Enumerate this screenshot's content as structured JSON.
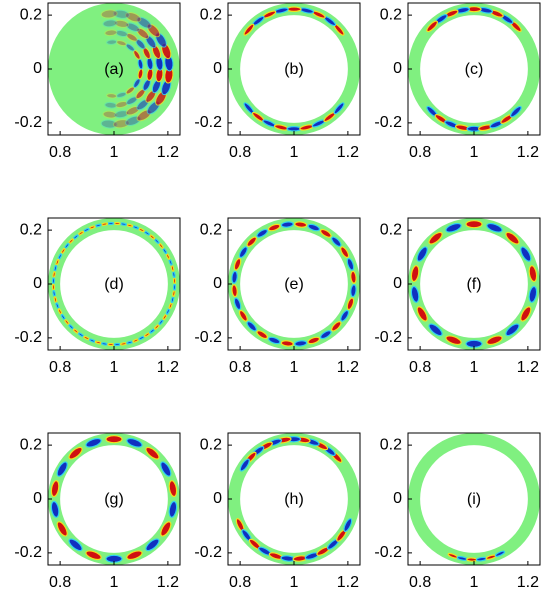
{
  "chart_data": [
    {
      "type": "heatmap",
      "annotation": "(a)",
      "xlim": [
        0.755,
        1.245
      ],
      "ylim": [
        -0.245,
        0.245
      ],
      "xticks": [
        0.8,
        1,
        1.2
      ],
      "yticks": [
        0.2,
        0,
        -0.2
      ]
    },
    {
      "type": "heatmap",
      "annotation": "(b)",
      "xlim": [
        0.755,
        1.245
      ],
      "ylim": [
        -0.245,
        0.245
      ],
      "xticks": [
        0.8,
        1,
        1.2
      ],
      "yticks": [
        0.2,
        0,
        -0.2
      ]
    },
    {
      "type": "heatmap",
      "annotation": "(c)",
      "xlim": [
        0.755,
        1.245
      ],
      "ylim": [
        -0.245,
        0.245
      ],
      "xticks": [
        0.8,
        1,
        1.2
      ],
      "yticks": [
        0.2,
        0,
        -0.2
      ]
    },
    {
      "type": "heatmap",
      "annotation": "(d)",
      "xlim": [
        0.755,
        1.245
      ],
      "ylim": [
        -0.245,
        0.245
      ],
      "xticks": [
        0.8,
        1,
        1.2
      ],
      "yticks": [
        0.2,
        0,
        -0.2
      ]
    },
    {
      "type": "heatmap",
      "annotation": "(e)",
      "xlim": [
        0.755,
        1.245
      ],
      "ylim": [
        -0.245,
        0.245
      ],
      "xticks": [
        0.8,
        1,
        1.2
      ],
      "yticks": [
        0.2,
        0,
        -0.2
      ]
    },
    {
      "type": "heatmap",
      "annotation": "(f)",
      "xlim": [
        0.755,
        1.245
      ],
      "ylim": [
        -0.245,
        0.245
      ],
      "xticks": [
        0.8,
        1,
        1.2
      ],
      "yticks": [
        0.2,
        0,
        -0.2
      ]
    },
    {
      "type": "heatmap",
      "annotation": "(g)",
      "xlim": [
        0.755,
        1.245
      ],
      "ylim": [
        -0.245,
        0.245
      ],
      "xticks": [
        0.8,
        1,
        1.2
      ],
      "yticks": [
        0.2,
        0,
        -0.2
      ]
    },
    {
      "type": "heatmap",
      "annotation": "(h)",
      "xlim": [
        0.755,
        1.245
      ],
      "ylim": [
        -0.245,
        0.245
      ],
      "xticks": [
        0.8,
        1,
        1.2
      ],
      "yticks": [
        0.2,
        0,
        -0.2
      ]
    },
    {
      "type": "heatmap",
      "annotation": "(i)",
      "xlim": [
        0.755,
        1.245
      ],
      "ylim": [
        -0.245,
        0.245
      ],
      "xticks": [
        0.8,
        1,
        1.2
      ],
      "yticks": [
        0.2,
        0,
        -0.2
      ]
    }
  ]
}
